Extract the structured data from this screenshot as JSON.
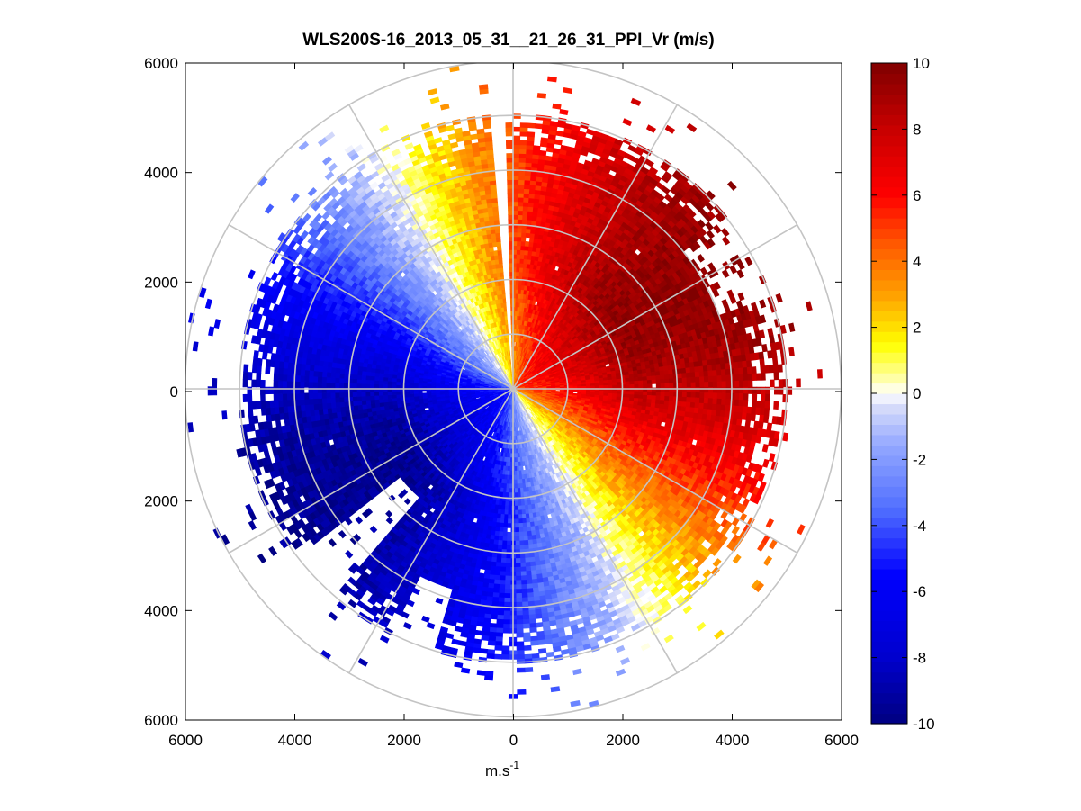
{
  "chart_data": {
    "type": "heatmap",
    "subtype": "polar-ppi",
    "title": "WLS200S-16_2013_05_31__21_26_31_PPI_Vr (m/s)",
    "xlabel": "m.s",
    "xlabel_sup": "-1",
    "ylabel": "",
    "xlim": [
      -6000,
      6000
    ],
    "ylim": [
      -6000,
      6000
    ],
    "x_ticks": [
      -6000,
      -4000,
      -2000,
      0,
      2000,
      4000,
      6000
    ],
    "x_tick_labels": [
      "6000",
      "4000",
      "2000",
      "0",
      "2000",
      "4000",
      "6000"
    ],
    "y_ticks": [
      6000,
      4000,
      2000,
      0,
      -2000,
      -4000,
      -6000
    ],
    "y_tick_labels": [
      "6000",
      "4000",
      "2000",
      "0",
      "2000",
      "4000",
      "6000"
    ],
    "range_rings": [
      1000,
      2000,
      3000,
      4000,
      5000,
      6000
    ],
    "spoke_angles_deg": [
      0,
      30,
      60,
      90,
      120,
      150,
      180,
      210,
      240,
      270,
      300,
      330
    ],
    "colorbar": {
      "min": -10,
      "max": 10,
      "ticks": [
        10,
        8,
        6,
        4,
        2,
        0,
        -2,
        -4,
        -6,
        -8,
        -10
      ],
      "tick_labels": [
        "10",
        "8",
        "6",
        "4",
        "2",
        "0",
        "-2",
        "-4",
        "-6",
        "-8",
        "-10"
      ],
      "colormap": "blue-white-yellow-red"
    },
    "field_description": {
      "wind_from_bearing_deg": 240,
      "max_speed_ms": 9.5,
      "data_range_m": 5000,
      "scatter_range_m": 6000,
      "missing_sector_bearing_deg": [
        356,
        359
      ]
    }
  }
}
